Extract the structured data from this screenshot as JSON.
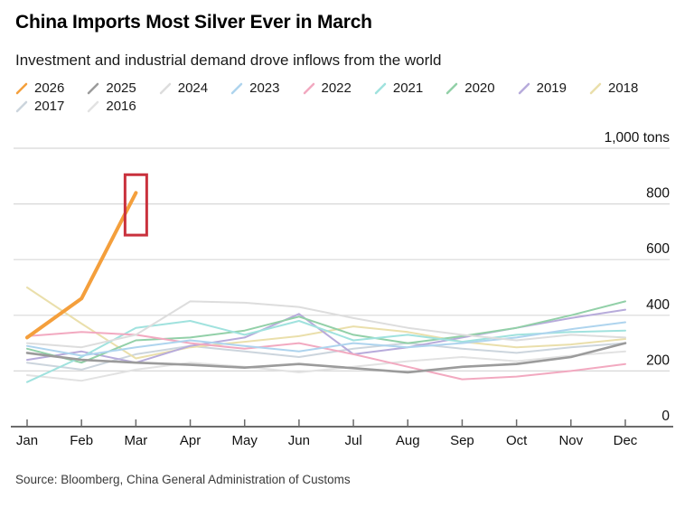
{
  "header": {
    "title": "China Imports Most Silver Ever in March",
    "subtitle": "Investment and industrial demand drove inflows from the world"
  },
  "source": "Source: Bloomberg, China General Administration of Customs",
  "accent_colors": {
    "highlight_series": "#f49f3c",
    "annotation_red": "#c9313d",
    "gridline": "#d8d8d8",
    "axis": "#6b6b6b"
  },
  "chart_data": {
    "type": "line",
    "title": "China Imports Most Silver Ever in March",
    "subtitle": "Investment and industrial demand drove inflows from the world",
    "unit_label": "1,000 tons",
    "xlabel": "",
    "ylabel": "1,000 tons",
    "ylim": [
      0,
      1050
    ],
    "grid": true,
    "legend_position": "top",
    "x": [
      "Jan",
      "Feb",
      "Mar",
      "Apr",
      "May",
      "Jun",
      "Jul",
      "Aug",
      "Sep",
      "Oct",
      "Nov",
      "Dec"
    ],
    "y_ticks": [
      {
        "value": 0,
        "label": "0"
      },
      {
        "value": 200,
        "label": "200"
      },
      {
        "value": 400,
        "label": "400"
      },
      {
        "value": 600,
        "label": "600"
      },
      {
        "value": 800,
        "label": "800"
      },
      {
        "value": 1000,
        "label": "1,000 tons"
      }
    ],
    "series": [
      {
        "name": "2026",
        "color": "#f49f3c",
        "width": 4,
        "values": [
          320,
          460,
          840,
          null,
          null,
          null,
          null,
          null,
          null,
          null,
          null,
          null
        ]
      },
      {
        "name": "2025",
        "color": "#9b9b9b",
        "width": 2.6,
        "values": [
          265,
          240,
          230,
          222,
          212,
          225,
          210,
          195,
          215,
          225,
          250,
          300
        ]
      },
      {
        "name": "2024",
        "color": "#dddddd",
        "width": 2,
        "values": [
          300,
          285,
          330,
          450,
          445,
          430,
          390,
          355,
          330,
          310,
          330,
          320
        ]
      },
      {
        "name": "2023",
        "color": "#aed4ee",
        "width": 2,
        "values": [
          290,
          255,
          285,
          310,
          290,
          270,
          300,
          285,
          300,
          320,
          350,
          375
        ]
      },
      {
        "name": "2022",
        "color": "#f2a9c0",
        "width": 2,
        "values": [
          325,
          340,
          330,
          300,
          280,
          300,
          260,
          215,
          170,
          180,
          200,
          225
        ]
      },
      {
        "name": "2021",
        "color": "#a0e2de",
        "width": 2,
        "values": [
          160,
          250,
          355,
          380,
          330,
          380,
          310,
          330,
          305,
          330,
          340,
          345
        ]
      },
      {
        "name": "2020",
        "color": "#92d0a8",
        "width": 2,
        "values": [
          280,
          230,
          310,
          320,
          345,
          395,
          330,
          300,
          325,
          355,
          400,
          450
        ]
      },
      {
        "name": "2019",
        "color": "#b7abdb",
        "width": 2,
        "values": [
          240,
          270,
          230,
          290,
          320,
          405,
          260,
          285,
          320,
          355,
          390,
          420
        ]
      },
      {
        "name": "2018",
        "color": "#eadfab",
        "width": 2,
        "values": [
          500,
          370,
          245,
          285,
          305,
          325,
          360,
          340,
          305,
          285,
          295,
          315
        ]
      },
      {
        "name": "2017",
        "color": "#ccd5dd",
        "width": 2,
        "values": [
          230,
          205,
          260,
          290,
          270,
          250,
          280,
          300,
          280,
          265,
          285,
          300
        ]
      },
      {
        "name": "2016",
        "color": "#e2e2e2",
        "width": 2,
        "values": [
          185,
          165,
          205,
          230,
          215,
          195,
          215,
          235,
          250,
          235,
          255,
          270
        ]
      }
    ],
    "annotation": {
      "type": "rect",
      "label": "march-2026-record-highlight",
      "month": "Mar",
      "value_from": 688,
      "value_to": 905,
      "color": "#c9313d"
    }
  }
}
